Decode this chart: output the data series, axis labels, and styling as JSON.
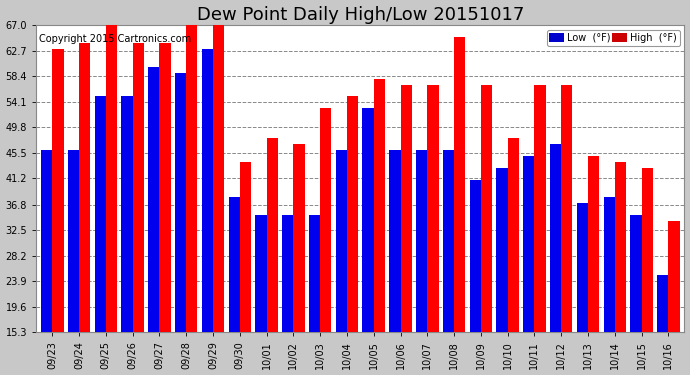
{
  "title": "Dew Point Daily High/Low 20151017",
  "copyright": "Copyright 2015 Cartronics.com",
  "dates": [
    "09/23",
    "09/24",
    "09/25",
    "09/26",
    "09/27",
    "09/28",
    "09/29",
    "09/30",
    "10/01",
    "10/02",
    "10/03",
    "10/04",
    "10/05",
    "10/06",
    "10/07",
    "10/08",
    "10/09",
    "10/10",
    "10/11",
    "10/12",
    "10/13",
    "10/14",
    "10/15",
    "10/16"
  ],
  "high": [
    63,
    64,
    68,
    64,
    64,
    68,
    68,
    44,
    48,
    47,
    53,
    55,
    58,
    57,
    57,
    65,
    57,
    48,
    57,
    57,
    45,
    44,
    43,
    34
  ],
  "low": [
    46,
    46,
    55,
    55,
    60,
    59,
    63,
    38,
    35,
    35,
    35,
    46,
    53,
    46,
    46,
    46,
    41,
    43,
    45,
    47,
    37,
    38,
    35,
    25
  ],
  "ylim_min": 15.3,
  "ylim_max": 67.0,
  "yticks": [
    15.3,
    19.6,
    23.9,
    28.2,
    32.5,
    36.8,
    41.2,
    45.5,
    49.8,
    54.1,
    58.4,
    62.7,
    67.0
  ],
  "bar_width": 0.42,
  "low_color": "#0000ee",
  "high_color": "#ff0000",
  "outer_bg": "#c8c8c8",
  "plot_bg": "#ffffff",
  "grid_color": "#888888",
  "title_fontsize": 13,
  "tick_fontsize": 7,
  "copyright_fontsize": 7,
  "legend_low_bg": "#0000cc",
  "legend_high_bg": "#cc0000"
}
